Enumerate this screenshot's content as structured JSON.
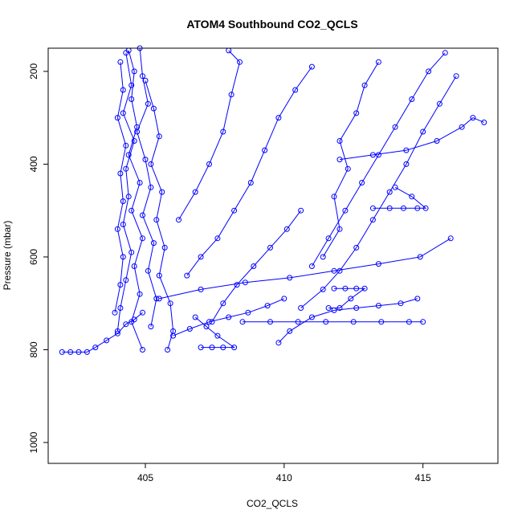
{
  "chart_data": {
    "type": "scatter",
    "title": "ATOM4 Southbound CO2_QCLS",
    "xlabel": "CO2_QCLS",
    "ylabel": "Pressure (mbar)",
    "xlim": [
      401.5,
      417.7
    ],
    "ylim": [
      1045,
      150
    ],
    "y_reversed": true,
    "x_ticks": [
      405,
      410,
      415
    ],
    "y_ticks": [
      200,
      400,
      600,
      800,
      1000
    ],
    "grid": false,
    "legend": "none",
    "point_style": "open-circle",
    "colors": {
      "series": "#0000ff",
      "axis": "#000000"
    },
    "series": [
      {
        "values": [
          [
            404.4,
            155
          ],
          [
            404.6,
            200
          ],
          [
            404.5,
            260
          ],
          [
            404.7,
            320
          ],
          [
            404.4,
            380
          ],
          [
            404.8,
            440
          ],
          [
            404.5,
            500
          ],
          [
            404.9,
            560
          ],
          [
            404.6,
            620
          ],
          [
            404.8,
            680
          ],
          [
            404.5,
            740
          ],
          [
            404.9,
            800
          ]
        ]
      },
      {
        "values": [
          [
            404.3,
            160
          ],
          [
            404.5,
            230
          ],
          [
            404.2,
            290
          ],
          [
            404.6,
            350
          ],
          [
            404.3,
            410
          ],
          [
            404.4,
            470
          ],
          [
            404.2,
            530
          ],
          [
            404.5,
            590
          ],
          [
            404.3,
            650
          ],
          [
            404.1,
            710
          ],
          [
            404.0,
            760
          ]
        ]
      },
      {
        "values": [
          [
            404.8,
            150
          ],
          [
            404.9,
            210
          ],
          [
            405.1,
            270
          ],
          [
            404.7,
            330
          ],
          [
            405.0,
            390
          ],
          [
            405.2,
            450
          ],
          [
            404.9,
            510
          ],
          [
            405.3,
            570
          ],
          [
            405.1,
            630
          ],
          [
            405.4,
            690
          ],
          [
            405.2,
            750
          ]
        ]
      },
      {
        "values": [
          [
            404.1,
            180
          ],
          [
            404.2,
            240
          ],
          [
            404.0,
            300
          ],
          [
            404.3,
            360
          ],
          [
            404.1,
            420
          ],
          [
            404.2,
            480
          ],
          [
            404.0,
            540
          ],
          [
            404.2,
            600
          ],
          [
            404.1,
            660
          ],
          [
            403.9,
            720
          ]
        ]
      },
      {
        "values": [
          [
            405.0,
            220
          ],
          [
            405.3,
            280
          ],
          [
            405.5,
            340
          ],
          [
            405.2,
            400
          ],
          [
            405.6,
            460
          ],
          [
            405.4,
            520
          ],
          [
            405.7,
            580
          ],
          [
            405.5,
            640
          ],
          [
            405.9,
            700
          ],
          [
            406.0,
            760
          ],
          [
            405.8,
            800
          ]
        ]
      },
      {
        "values": [
          [
            402.0,
            805
          ],
          [
            402.3,
            805
          ],
          [
            402.6,
            805
          ],
          [
            402.9,
            805
          ],
          [
            403.2,
            795
          ],
          [
            403.6,
            780
          ],
          [
            404.0,
            765
          ],
          [
            404.3,
            745
          ],
          [
            404.6,
            735
          ],
          [
            404.9,
            720
          ]
        ]
      },
      {
        "values": [
          [
            406.2,
            520
          ],
          [
            406.8,
            460
          ],
          [
            407.3,
            400
          ],
          [
            407.8,
            330
          ],
          [
            408.1,
            250
          ],
          [
            408.4,
            180
          ],
          [
            408.0,
            155
          ]
        ]
      },
      {
        "values": [
          [
            406.5,
            640
          ],
          [
            407.0,
            600
          ],
          [
            407.6,
            560
          ],
          [
            408.2,
            500
          ],
          [
            408.8,
            440
          ],
          [
            409.3,
            370
          ],
          [
            409.8,
            300
          ],
          [
            410.4,
            240
          ],
          [
            411.0,
            190
          ]
        ]
      },
      {
        "values": [
          [
            407.4,
            740
          ],
          [
            407.8,
            700
          ],
          [
            408.3,
            660
          ],
          [
            408.9,
            620
          ],
          [
            409.5,
            580
          ],
          [
            410.1,
            540
          ],
          [
            410.6,
            500
          ]
        ]
      },
      {
        "values": [
          [
            407.0,
            795
          ],
          [
            407.4,
            795
          ],
          [
            407.8,
            795
          ],
          [
            408.2,
            795
          ],
          [
            407.6,
            770
          ],
          [
            407.2,
            750
          ],
          [
            406.8,
            730
          ]
        ]
      },
      {
        "values": [
          [
            408.5,
            740
          ],
          [
            409.5,
            740
          ],
          [
            410.5,
            740
          ],
          [
            411.5,
            740
          ],
          [
            412.5,
            740
          ],
          [
            413.5,
            740
          ],
          [
            414.5,
            740
          ],
          [
            415.0,
            740
          ]
        ]
      },
      {
        "values": [
          [
            409.8,
            785
          ],
          [
            410.2,
            760
          ],
          [
            411.0,
            730
          ],
          [
            411.8,
            715
          ],
          [
            412.6,
            710
          ],
          [
            413.4,
            705
          ],
          [
            414.2,
            700
          ],
          [
            414.8,
            690
          ]
        ]
      },
      {
        "values": [
          [
            410.6,
            710
          ],
          [
            411.4,
            670
          ],
          [
            412.0,
            630
          ],
          [
            412.6,
            580
          ],
          [
            413.2,
            520
          ],
          [
            413.8,
            460
          ],
          [
            414.4,
            400
          ],
          [
            415.0,
            330
          ],
          [
            415.6,
            270
          ],
          [
            416.2,
            210
          ]
        ]
      },
      {
        "values": [
          [
            411.0,
            620
          ],
          [
            411.6,
            560
          ],
          [
            412.2,
            500
          ],
          [
            412.8,
            440
          ],
          [
            413.4,
            380
          ],
          [
            414.0,
            320
          ],
          [
            414.6,
            260
          ],
          [
            415.2,
            200
          ],
          [
            415.8,
            160
          ]
        ]
      },
      {
        "values": [
          [
            411.4,
            600
          ],
          [
            412.0,
            540
          ],
          [
            411.8,
            470
          ],
          [
            412.3,
            410
          ],
          [
            412.0,
            350
          ],
          [
            412.6,
            290
          ],
          [
            412.9,
            230
          ],
          [
            413.4,
            180
          ]
        ]
      },
      {
        "values": [
          [
            413.2,
            495
          ],
          [
            413.8,
            495
          ],
          [
            414.3,
            495
          ],
          [
            414.8,
            495
          ],
          [
            415.1,
            495
          ],
          [
            414.6,
            470
          ],
          [
            414.0,
            450
          ]
        ]
      },
      {
        "values": [
          [
            411.8,
            668
          ],
          [
            412.2,
            668
          ],
          [
            412.6,
            668
          ],
          [
            412.9,
            668
          ],
          [
            412.4,
            690
          ],
          [
            412.0,
            710
          ],
          [
            411.6,
            710
          ]
        ]
      },
      {
        "values": [
          [
            405.5,
            690
          ],
          [
            407.0,
            670
          ],
          [
            408.6,
            655
          ],
          [
            410.2,
            645
          ],
          [
            411.8,
            630
          ],
          [
            413.4,
            615
          ],
          [
            414.9,
            600
          ],
          [
            416.0,
            560
          ]
        ]
      },
      {
        "values": [
          [
            412.0,
            390
          ],
          [
            413.2,
            380
          ],
          [
            414.4,
            370
          ],
          [
            415.5,
            350
          ],
          [
            416.4,
            320
          ],
          [
            416.8,
            300
          ],
          [
            417.2,
            310
          ]
        ]
      },
      {
        "values": [
          [
            406.0,
            770
          ],
          [
            406.6,
            755
          ],
          [
            407.3,
            740
          ],
          [
            408.0,
            730
          ],
          [
            408.7,
            720
          ],
          [
            409.4,
            705
          ],
          [
            410.0,
            690
          ]
        ]
      }
    ]
  }
}
